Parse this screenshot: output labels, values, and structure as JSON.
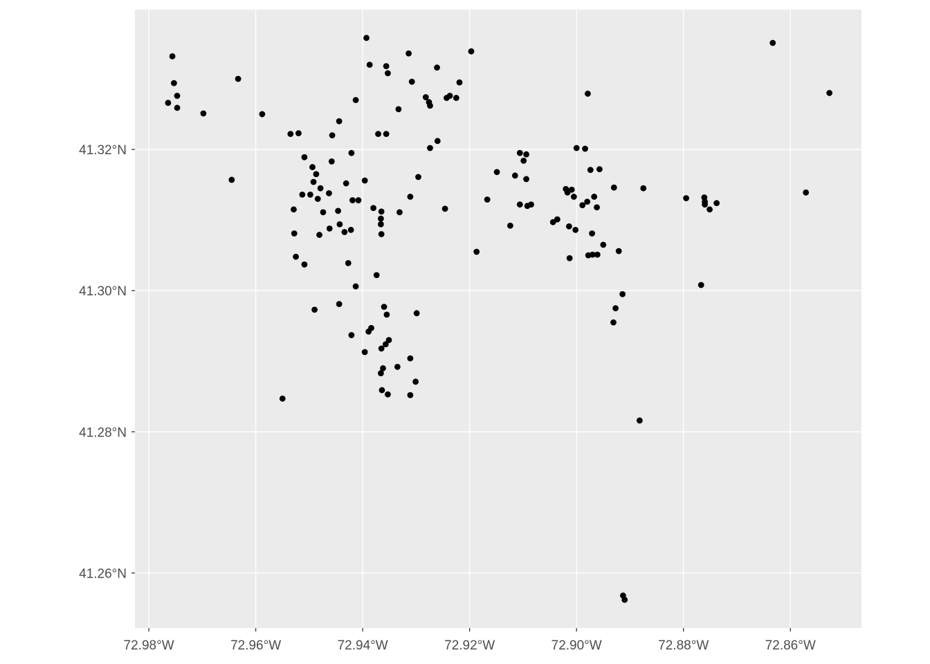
{
  "chart_data": {
    "type": "scatter",
    "title": "",
    "xlabel": "",
    "ylabel": "",
    "xlim": [
      -72.9826,
      -72.8467
    ],
    "ylim": [
      41.2522,
      41.3398
    ],
    "x_ticks": [
      -72.98,
      -72.96,
      -72.94,
      -72.92,
      -72.9,
      -72.88,
      -72.86
    ],
    "x_tick_labels": [
      "72.98°W",
      "72.96°W",
      "72.94°W",
      "72.92°W",
      "72.90°W",
      "72.88°W",
      "72.86°W"
    ],
    "y_ticks": [
      41.26,
      41.28,
      41.3,
      41.32
    ],
    "y_tick_labels": [
      "41.26°N",
      "41.28°N",
      "41.30°N",
      "41.32°N"
    ],
    "grid": true,
    "panel_background": "#ebebeb",
    "grid_color": "#ffffff",
    "point_color": "#000000",
    "points": [
      [
        -72.9756,
        41.3332
      ],
      [
        -72.9753,
        41.3294
      ],
      [
        -72.9747,
        41.3276
      ],
      [
        -72.9764,
        41.3266
      ],
      [
        -72.9747,
        41.3259
      ],
      [
        -72.9698,
        41.3251
      ],
      [
        -72.9633,
        41.33
      ],
      [
        -72.9588,
        41.325
      ],
      [
        -72.9645,
        41.3157
      ],
      [
        -72.955,
        41.2847
      ],
      [
        -72.9393,
        41.3358
      ],
      [
        -72.9387,
        41.332
      ],
      [
        -72.9356,
        41.3318
      ],
      [
        -72.9353,
        41.3308
      ],
      [
        -72.9314,
        41.3336
      ],
      [
        -72.9308,
        41.3296
      ],
      [
        -72.9261,
        41.3316
      ],
      [
        -72.9219,
        41.3295
      ],
      [
        -72.9197,
        41.3339
      ],
      [
        -72.9282,
        41.3274
      ],
      [
        -72.9276,
        41.3267
      ],
      [
        -72.9274,
        41.3262
      ],
      [
        -72.9243,
        41.3273
      ],
      [
        -72.9237,
        41.3276
      ],
      [
        -72.9225,
        41.3273
      ],
      [
        -72.9333,
        41.3257
      ],
      [
        -72.9413,
        41.327
      ],
      [
        -72.9444,
        41.324
      ],
      [
        -72.9457,
        41.322
      ],
      [
        -72.9535,
        41.3222
      ],
      [
        -72.952,
        41.3223
      ],
      [
        -72.9371,
        41.3222
      ],
      [
        -72.9356,
        41.3222
      ],
      [
        -72.926,
        41.3212
      ],
      [
        -72.9274,
        41.3202
      ],
      [
        -72.9421,
        41.3195
      ],
      [
        -72.9509,
        41.3189
      ],
      [
        -72.9458,
        41.3183
      ],
      [
        -72.9494,
        41.3175
      ],
      [
        -72.9487,
        41.3165
      ],
      [
        -72.9492,
        41.3154
      ],
      [
        -72.9396,
        41.3156
      ],
      [
        -72.9513,
        41.3136
      ],
      [
        -72.9498,
        41.3136
      ],
      [
        -72.9479,
        41.3145
      ],
      [
        -72.9463,
        41.3138
      ],
      [
        -72.9431,
        41.3152
      ],
      [
        -72.9296,
        41.3161
      ],
      [
        -72.9311,
        41.3133
      ],
      [
        -72.9529,
        41.3115
      ],
      [
        -72.9484,
        41.313
      ],
      [
        -72.9419,
        41.3128
      ],
      [
        -72.9408,
        41.3128
      ],
      [
        -72.938,
        41.3117
      ],
      [
        -72.9365,
        41.3112
      ],
      [
        -72.9366,
        41.3102
      ],
      [
        -72.9366,
        41.3094
      ],
      [
        -72.9331,
        41.3111
      ],
      [
        -72.9246,
        41.3116
      ],
      [
        -72.9474,
        41.3111
      ],
      [
        -72.9446,
        41.3113
      ],
      [
        -72.9528,
        41.3081
      ],
      [
        -72.9481,
        41.3079
      ],
      [
        -72.9462,
        41.3088
      ],
      [
        -72.9443,
        41.3094
      ],
      [
        -72.9434,
        41.3083
      ],
      [
        -72.9422,
        41.3086
      ],
      [
        -72.9365,
        41.308
      ],
      [
        -72.9525,
        41.3048
      ],
      [
        -72.9509,
        41.3037
      ],
      [
        -72.9427,
        41.3039
      ],
      [
        -72.9374,
        41.3022
      ],
      [
        -72.9413,
        41.3006
      ],
      [
        -72.9444,
        41.2981
      ],
      [
        -72.949,
        41.2973
      ],
      [
        -72.936,
        41.2977
      ],
      [
        -72.9355,
        41.2966
      ],
      [
        -72.9299,
        41.2968
      ],
      [
        -72.9384,
        41.2947
      ],
      [
        -72.9389,
        41.2942
      ],
      [
        -72.9421,
        41.2937
      ],
      [
        -72.9396,
        41.2913
      ],
      [
        -72.9351,
        41.293
      ],
      [
        -72.9357,
        41.2924
      ],
      [
        -72.9365,
        41.2918
      ],
      [
        -72.9362,
        41.289
      ],
      [
        -72.9366,
        41.2883
      ],
      [
        -72.9335,
        41.2892
      ],
      [
        -72.9311,
        41.2904
      ],
      [
        -72.9301,
        41.2871
      ],
      [
        -72.9364,
        41.2859
      ],
      [
        -72.9353,
        41.2853
      ],
      [
        -72.9311,
        41.2852
      ],
      [
        -72.9187,
        41.3055
      ],
      [
        -72.9167,
        41.3129
      ],
      [
        -72.9149,
        41.3168
      ],
      [
        -72.9124,
        41.3092
      ],
      [
        -72.9115,
        41.3163
      ],
      [
        -72.9106,
        41.3195
      ],
      [
        -72.9099,
        41.3184
      ],
      [
        -72.9094,
        41.3193
      ],
      [
        -72.9094,
        41.3158
      ],
      [
        -72.9106,
        41.3122
      ],
      [
        -72.9092,
        41.312
      ],
      [
        -72.9085,
        41.3122
      ],
      [
        -72.9044,
        41.3097
      ],
      [
        -72.9036,
        41.3101
      ],
      [
        -72.902,
        41.3144
      ],
      [
        -72.9017,
        41.3139
      ],
      [
        -72.9009,
        41.3143
      ],
      [
        -72.9005,
        41.3133
      ],
      [
        -72.9014,
        41.3091
      ],
      [
        -72.9002,
        41.3086
      ],
      [
        -72.9013,
        41.3046
      ],
      [
        -72.9,
        41.3202
      ],
      [
        -72.8984,
        41.3201
      ],
      [
        -72.8979,
        41.3279
      ],
      [
        -72.8974,
        41.3171
      ],
      [
        -72.8957,
        41.3172
      ],
      [
        -72.898,
        41.3126
      ],
      [
        -72.8989,
        41.3121
      ],
      [
        -72.8967,
        41.3133
      ],
      [
        -72.8962,
        41.3118
      ],
      [
        -72.8971,
        41.3081
      ],
      [
        -72.8978,
        41.305
      ],
      [
        -72.897,
        41.3051
      ],
      [
        -72.8961,
        41.3051
      ],
      [
        -72.895,
        41.3065
      ],
      [
        -72.893,
        41.3146
      ],
      [
        -72.8875,
        41.3145
      ],
      [
        -72.8921,
        41.3056
      ],
      [
        -72.8914,
        41.2995
      ],
      [
        -72.8927,
        41.2975
      ],
      [
        -72.8931,
        41.2955
      ],
      [
        -72.8882,
        41.2816
      ],
      [
        -72.8913,
        41.2568
      ],
      [
        -72.891,
        41.2562
      ],
      [
        -72.8795,
        41.3131
      ],
      [
        -72.8761,
        41.3132
      ],
      [
        -72.876,
        41.3126
      ],
      [
        -72.876,
        41.3122
      ],
      [
        -72.8751,
        41.3115
      ],
      [
        -72.8738,
        41.3124
      ],
      [
        -72.8767,
        41.3008
      ],
      [
        -72.8633,
        41.3351
      ],
      [
        -72.8527,
        41.328
      ],
      [
        -72.8571,
        41.3139
      ]
    ]
  }
}
